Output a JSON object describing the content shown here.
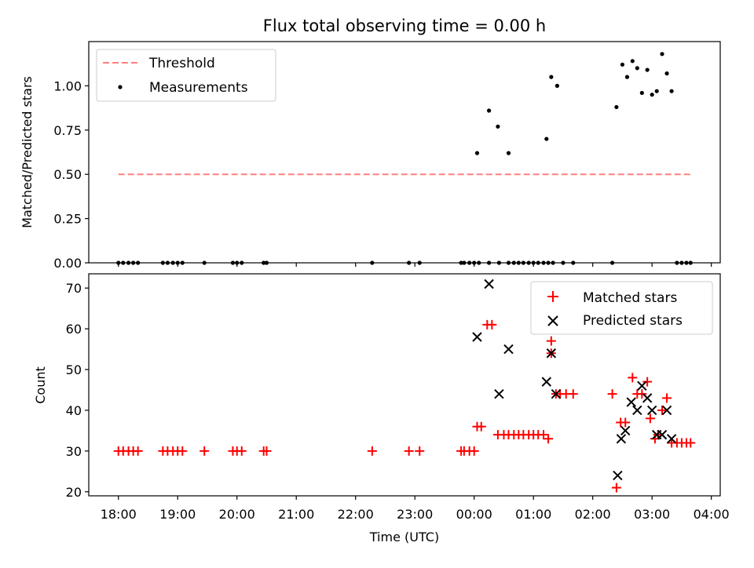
{
  "chart_data": [
    {
      "type": "scatter",
      "title": "Flux total observing time = 0.00 h",
      "ylabel": "Matched/Predicted stars",
      "xlabel": "",
      "xlim": [
        17.5,
        28.15
      ],
      "ylim": [
        0,
        1.25
      ],
      "yticks": [
        0.0,
        0.25,
        0.5,
        0.75,
        1.0
      ],
      "ytick_labels": [
        "0.00",
        "0.25",
        "0.50",
        "0.75",
        "1.00"
      ],
      "xticks": [
        18,
        19,
        20,
        21,
        22,
        23,
        24,
        25,
        26,
        27,
        28
      ],
      "legend_position": "top-left",
      "threshold": {
        "name": "Threshold",
        "value": 0.5,
        "x_range": [
          18.0,
          27.65
        ],
        "color": "#ff7f7f"
      },
      "series": [
        {
          "name": "Measurements",
          "color": "#000000",
          "marker": "dot",
          "x": [
            18.0,
            18.08,
            18.17,
            18.25,
            18.33,
            18.75,
            18.83,
            18.92,
            19.0,
            19.08,
            19.45,
            19.93,
            20.0,
            20.08,
            20.45,
            20.5,
            22.28,
            22.9,
            23.08,
            23.78,
            23.83,
            23.92,
            24.0,
            24.08,
            24.25,
            24.42,
            24.58,
            24.67,
            24.75,
            24.83,
            24.92,
            25.0,
            25.08,
            25.17,
            25.25,
            25.33,
            25.5,
            25.67,
            26.33,
            27.42,
            27.5,
            27.58,
            27.65,
            24.05,
            24.25,
            24.4,
            24.58,
            25.22,
            25.3,
            25.4,
            26.4,
            26.5,
            26.58,
            26.67,
            26.75,
            26.83,
            26.92,
            27.0,
            27.08,
            27.17,
            27.25,
            27.33
          ],
          "y": [
            0,
            0,
            0,
            0,
            0,
            0,
            0,
            0,
            0,
            0,
            0,
            0,
            0,
            0,
            0,
            0,
            0,
            0,
            0,
            0,
            0,
            0,
            0,
            0,
            0,
            0,
            0,
            0,
            0,
            0,
            0,
            0,
            0,
            0,
            0,
            0,
            0,
            0,
            0,
            0,
            0,
            0,
            0,
            0.62,
            0.86,
            0.77,
            0.62,
            0.7,
            1.05,
            1.0,
            0.88,
            1.12,
            1.05,
            1.14,
            1.1,
            0.96,
            1.09,
            0.95,
            0.97,
            1.18,
            1.07,
            0.97
          ]
        }
      ]
    },
    {
      "type": "scatter",
      "title": "",
      "ylabel": "Count",
      "xlabel": "Time (UTC)",
      "xlim": [
        17.5,
        28.15
      ],
      "ylim": [
        19,
        73.5
      ],
      "yticks": [
        20,
        30,
        40,
        50,
        60,
        70
      ],
      "ytick_labels": [
        "20",
        "30",
        "40",
        "50",
        "60",
        "70"
      ],
      "xticks": [
        18,
        19,
        20,
        21,
        22,
        23,
        24,
        25,
        26,
        27,
        28
      ],
      "xtick_labels": [
        "18:00",
        "19:00",
        "20:00",
        "21:00",
        "22:00",
        "23:00",
        "00:00",
        "01:00",
        "02:00",
        "03:00",
        "04:00"
      ],
      "legend_position": "top-right",
      "series": [
        {
          "name": "Matched stars",
          "color": "#ff0000",
          "marker": "plus",
          "x": [
            18.0,
            18.08,
            18.17,
            18.25,
            18.33,
            18.75,
            18.83,
            18.92,
            19.0,
            19.08,
            19.45,
            19.93,
            20.0,
            20.08,
            20.45,
            20.5,
            22.28,
            22.9,
            23.08,
            23.78,
            23.83,
            23.92,
            24.0,
            24.05,
            24.12,
            24.22,
            24.3,
            24.4,
            24.5,
            24.58,
            24.67,
            24.75,
            24.83,
            24.92,
            25.0,
            25.08,
            25.17,
            25.25,
            25.3,
            25.3,
            25.38,
            25.45,
            25.55,
            25.67,
            26.33,
            26.4,
            26.47,
            26.55,
            26.67,
            26.75,
            26.83,
            26.92,
            26.97,
            27.05,
            27.1,
            27.17,
            27.25,
            27.33,
            27.42,
            27.5,
            27.58,
            27.65
          ],
          "y": [
            30,
            30,
            30,
            30,
            30,
            30,
            30,
            30,
            30,
            30,
            30,
            30,
            30,
            30,
            30,
            30,
            30,
            30,
            30,
            30,
            30,
            30,
            30,
            36,
            36,
            61,
            61,
            34,
            34,
            34,
            34,
            34,
            34,
            34,
            34,
            34,
            34,
            33,
            57,
            54,
            44,
            44,
            44,
            44,
            44,
            21,
            37,
            37,
            48,
            44,
            44,
            47,
            38,
            33,
            34,
            40,
            43,
            32,
            32,
            32,
            32,
            32
          ]
        },
        {
          "name": "Predicted stars",
          "color": "#000000",
          "marker": "x",
          "x": [
            24.05,
            24.25,
            24.42,
            24.58,
            25.22,
            25.3,
            25.38,
            26.42,
            26.48,
            26.55,
            26.65,
            26.75,
            26.83,
            26.92,
            27.0,
            27.08,
            27.17,
            27.25,
            27.33
          ],
          "y": [
            58,
            71,
            44,
            55,
            47,
            54,
            44,
            24,
            33,
            35,
            42,
            40,
            46,
            43,
            40,
            34,
            34,
            40,
            33
          ]
        }
      ]
    }
  ]
}
